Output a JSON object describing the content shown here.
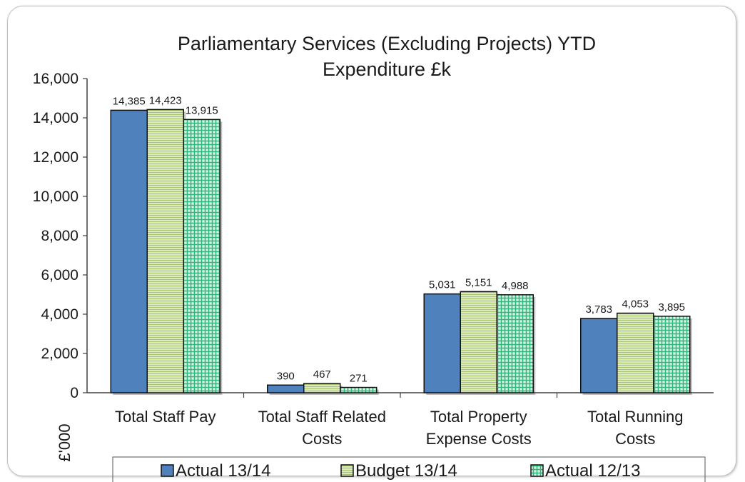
{
  "chart_data": {
    "type": "bar",
    "title_lines": [
      "Parliamentary Services (Excluding Projects) YTD",
      "Expenditure  £k"
    ],
    "ylabel": "£'000",
    "xlabel": "",
    "ylim": [
      0,
      16000
    ],
    "yticks": [
      "0",
      "2,000",
      "4,000",
      "6,000",
      "8,000",
      "10,000",
      "12,000",
      "14,000",
      "16,000"
    ],
    "ytick_values": [
      0,
      2000,
      4000,
      6000,
      8000,
      10000,
      12000,
      14000,
      16000
    ],
    "categories": [
      [
        "Total Staff Pay"
      ],
      [
        "Total Staff Related",
        "Costs"
      ],
      [
        "Total Property",
        "Expense Costs"
      ],
      [
        "Total Running",
        "Costs"
      ]
    ],
    "series": [
      {
        "name": "Actual 13/14",
        "values": [
          14385,
          390,
          5031,
          3783
        ],
        "labels": [
          "14,385",
          "390",
          "5,031",
          "3,783"
        ],
        "color": "#4f81bd",
        "pattern": "solid"
      },
      {
        "name": "Budget 13/14",
        "values": [
          14423,
          467,
          5151,
          4053
        ],
        "labels": [
          "14,423",
          "467",
          "5,151",
          "4,053"
        ],
        "color": "#c3d69b",
        "pattern": "hstripes"
      },
      {
        "name": "Actual 12/13",
        "values": [
          13915,
          271,
          4988,
          3895
        ],
        "labels": [
          "13,915",
          "271",
          "4,988",
          "3,895"
        ],
        "color": "#2fb67a",
        "pattern": "grid"
      }
    ],
    "legend_position": "bottom",
    "grid": false
  }
}
